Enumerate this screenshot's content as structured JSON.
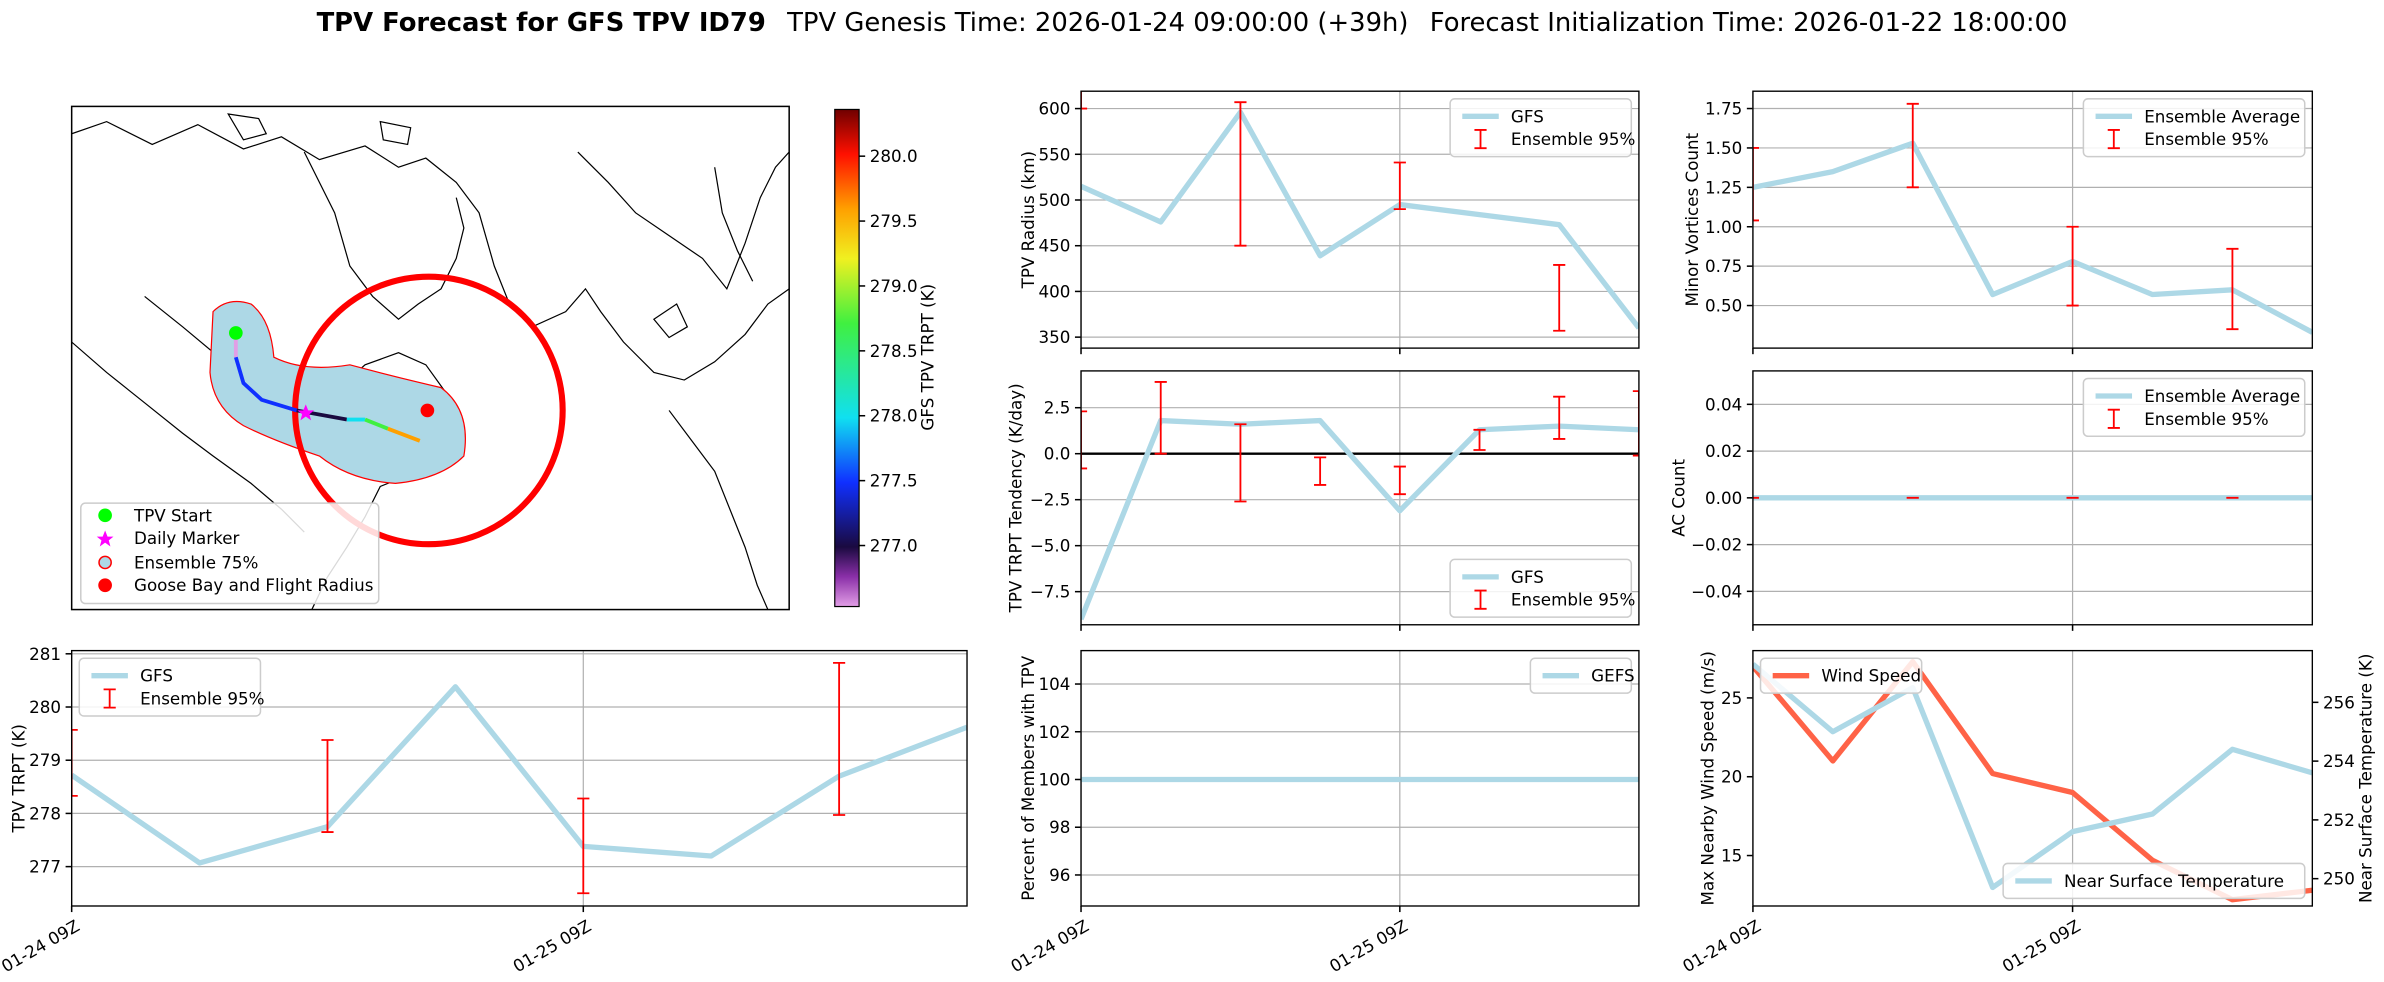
{
  "title": {
    "main": "TPV Forecast for GFS TPV ID79",
    "genesis": "TPV Genesis Time: 2026-01-24 09:00:00 (+39h)",
    "init": "Forecast Initialization Time: 2026-01-22 18:00:00"
  },
  "chart_data": [
    {
      "type": "map",
      "legend": [
        "TPV Start",
        "Daily Marker",
        "Ensemble 75%",
        "Goose Bay and Flight Radius"
      ],
      "colorbar": {
        "label": "GFS TPV TRPT (K)",
        "lim": [
          276.53,
          280.36
        ],
        "ticks": [
          {
            "value": 277,
            "label": "277.0"
          },
          {
            "value": 277.5,
            "label": "277.5"
          },
          {
            "value": 278,
            "label": "278.0"
          },
          {
            "value": 278.5,
            "label": "278.5"
          },
          {
            "value": 279,
            "label": "279.0"
          },
          {
            "value": 279.5,
            "label": "279.5"
          },
          {
            "value": 280,
            "label": "280.0"
          }
        ]
      }
    },
    {
      "type": "line",
      "ylabel": "TPV TRPT (K)",
      "x": [
        "01-24 09Z",
        "01-24 15Z",
        "01-24 21Z",
        "01-25 03Z",
        "01-25 09Z",
        "01-25 15Z",
        "01-25 21Z",
        "01-26 03Z"
      ],
      "xticks": [
        "01-24 09Z",
        "01-25 09Z"
      ],
      "ylim": [
        276.26,
        281.06
      ],
      "yticks": [
        277,
        278,
        279,
        280,
        281
      ],
      "grid": true,
      "legend": "upper left",
      "series": [
        {
          "name": "GFS",
          "color": "#add8e6",
          "values": [
            278.72,
            277.07,
            277.75,
            280.38,
            277.38,
            277.2,
            278.7,
            279.62
          ]
        },
        {
          "name": "Ensemble 95%",
          "color": "#ff0000",
          "type": "errorbar",
          "x": [
            "01-24 09Z",
            "01-24 21Z",
            "01-25 09Z",
            "01-25 21Z"
          ],
          "low": [
            278.33,
            277.65,
            276.5,
            277.97
          ],
          "high": [
            279.57,
            279.38,
            278.28,
            280.83
          ]
        }
      ]
    },
    {
      "type": "line",
      "ylabel": "TPV Radius (km)",
      "x": [
        "01-24 09Z",
        "01-24 15Z",
        "01-24 21Z",
        "01-25 03Z",
        "01-25 09Z",
        "01-25 15Z",
        "01-25 21Z",
        "01-26 03Z"
      ],
      "xticks": [
        "01-24 09Z",
        "01-25 09Z"
      ],
      "ylim": [
        338,
        619
      ],
      "yticks": [
        350,
        400,
        450,
        500,
        550,
        600
      ],
      "grid": true,
      "legend": "upper right",
      "series": [
        {
          "name": "GFS",
          "color": "#add8e6",
          "values": [
            515,
            476,
            596,
            439,
            495,
            484,
            473,
            360
          ]
        },
        {
          "name": "Ensemble 95%",
          "color": "#ff0000",
          "type": "errorbar",
          "x": [
            "01-24 09Z",
            "01-24 21Z",
            "01-25 09Z",
            "01-25 21Z"
          ],
          "low": [
            600,
            450,
            490,
            357
          ],
          "high": [
            625,
            607,
            541,
            429
          ]
        }
      ]
    },
    {
      "type": "line",
      "ylabel": "Minor Vortices Count",
      "x": [
        "01-24 09Z",
        "01-24 15Z",
        "01-24 21Z",
        "01-25 03Z",
        "01-25 09Z",
        "01-25 15Z",
        "01-25 21Z",
        "01-26 03Z"
      ],
      "xticks": [
        "01-24 09Z",
        "01-25 09Z"
      ],
      "ylim": [
        0.23,
        1.86
      ],
      "yticks": [
        {
          "value": 0.5,
          "label": "0.50"
        },
        {
          "value": 0.75,
          "label": "0.75"
        },
        {
          "value": 1,
          "label": "1.00"
        },
        {
          "value": 1.25,
          "label": "1.25"
        },
        {
          "value": 1.5,
          "label": "1.50"
        },
        {
          "value": 1.75,
          "label": "1.75"
        }
      ],
      "grid": true,
      "legend": "upper right",
      "series": [
        {
          "name": "Ensemble Average",
          "color": "#add8e6",
          "values": [
            1.25,
            1.35,
            1.53,
            0.57,
            0.78,
            0.57,
            0.6,
            0.33
          ]
        },
        {
          "name": "Ensemble 95%",
          "color": "#ff0000",
          "type": "errorbar",
          "x": [
            "01-24 09Z",
            "01-24 21Z",
            "01-25 09Z",
            "01-25 21Z"
          ],
          "low": [
            1.04,
            1.25,
            0.5,
            0.35
          ],
          "high": [
            1.5,
            1.78,
            1.0,
            0.86
          ]
        }
      ]
    },
    {
      "type": "line",
      "ylabel": "TPV TRPT Tendency (K/day)",
      "x": [
        "01-24 09Z",
        "01-24 15Z",
        "01-24 21Z",
        "01-25 03Z",
        "01-25 09Z",
        "01-25 15Z",
        "01-25 21Z",
        "01-26 03Z"
      ],
      "xticks": [
        "01-24 09Z",
        "01-25 09Z"
      ],
      "ylim": [
        -9.3,
        4.5
      ],
      "yticks": [
        {
          "value": -7.5,
          "label": "−7.5"
        },
        {
          "value": -5,
          "label": "−5.0"
        },
        {
          "value": -2.5,
          "label": "−2.5"
        },
        {
          "value": 0,
          "label": "0.0"
        },
        {
          "value": 2.5,
          "label": "2.5"
        }
      ],
      "hline": 0,
      "grid": true,
      "legend": "lower right",
      "series": [
        {
          "name": "GFS",
          "color": "#add8e6",
          "values": [
            -9.0,
            1.8,
            1.6,
            1.8,
            -3.1,
            1.3,
            1.5,
            1.3
          ]
        },
        {
          "name": "Ensemble 95%",
          "color": "#ff0000",
          "type": "errorbar",
          "x": [
            "01-24 09Z",
            "01-24 15Z",
            "01-24 21Z",
            "01-25 03Z",
            "01-25 09Z",
            "01-25 15Z",
            "01-25 21Z",
            "01-26 03Z"
          ],
          "low": [
            -0.8,
            0,
            -2.6,
            -1.7,
            -2.2,
            0.2,
            0.8,
            -0.1
          ],
          "high": [
            2.3,
            3.9,
            1.6,
            -0.2,
            -0.7,
            1.3,
            3.1,
            3.4
          ]
        }
      ]
    },
    {
      "type": "line",
      "ylabel": "AC Count",
      "x": [
        "01-24 09Z",
        "01-24 15Z",
        "01-24 21Z",
        "01-25 03Z",
        "01-25 09Z",
        "01-25 15Z",
        "01-25 21Z",
        "01-26 03Z"
      ],
      "xticks": [
        "01-24 09Z",
        "01-25 09Z"
      ],
      "ylim": [
        -0.0543,
        0.0543
      ],
      "yticks": [
        {
          "value": -0.04,
          "label": "−0.04"
        },
        {
          "value": -0.02,
          "label": "−0.02"
        },
        {
          "value": 0,
          "label": "0.00"
        },
        {
          "value": 0.02,
          "label": "0.02"
        },
        {
          "value": 0.04,
          "label": "0.04"
        }
      ],
      "grid": true,
      "legend": "upper right",
      "series": [
        {
          "name": "Ensemble Average",
          "color": "#add8e6",
          "values": [
            0,
            0,
            0,
            0,
            0,
            0,
            0,
            0
          ]
        },
        {
          "name": "Ensemble 95%",
          "color": "#ff0000",
          "type": "errorbar",
          "x": [
            "01-24 09Z",
            "01-24 21Z",
            "01-25 09Z",
            "01-25 21Z"
          ],
          "low": [
            0,
            0,
            0,
            0
          ],
          "high": [
            0,
            0,
            0,
            0
          ]
        }
      ]
    },
    {
      "type": "line",
      "ylabel": "Percent of Members with TPV",
      "x": [
        "01-24 09Z",
        "01-24 15Z",
        "01-24 21Z",
        "01-25 03Z",
        "01-25 09Z",
        "01-25 15Z",
        "01-25 21Z",
        "01-26 03Z"
      ],
      "xticks": [
        "01-24 09Z",
        "01-25 09Z"
      ],
      "ylim": [
        94.7,
        105.4
      ],
      "yticks": [
        96,
        98,
        100,
        102,
        104
      ],
      "grid": true,
      "legend": "upper right",
      "series": [
        {
          "name": "GEFS",
          "color": "#add8e6",
          "values": [
            100,
            100,
            100,
            100,
            100,
            100,
            100,
            100
          ]
        }
      ]
    },
    {
      "type": "line",
      "ylabel": "Max Nearby Wind Speed (m/s)",
      "ylabel_color": "#ff6347",
      "y2label": "Near Surface Temperature (K)",
      "y2label_color": "#4169e1",
      "x": [
        "01-24 09Z",
        "01-24 15Z",
        "01-24 21Z",
        "01-25 03Z",
        "01-25 09Z",
        "01-25 15Z",
        "01-25 21Z",
        "01-26 03Z"
      ],
      "xticks": [
        "01-24 09Z",
        "01-25 09Z"
      ],
      "ylim": [
        11.8,
        28.0
      ],
      "yticks": [
        15,
        20,
        25
      ],
      "y2lim": [
        249.07,
        257.76
      ],
      "y2ticks": [
        250,
        252,
        254,
        256
      ],
      "grid": "x",
      "series": [
        {
          "name": "Wind Speed",
          "color": "#ff6347",
          "legend": "upper left",
          "values": [
            27.0,
            21.0,
            27.3,
            20.2,
            19.0,
            14.7,
            12.2,
            12.8
          ]
        },
        {
          "name": "Near Surface Temperature",
          "color": "#add8e6",
          "axis": "y2",
          "legend": "lower right",
          "values": [
            257.3,
            255.0,
            256.5,
            249.7,
            251.6,
            252.2,
            254.4,
            253.6
          ]
        }
      ]
    }
  ]
}
